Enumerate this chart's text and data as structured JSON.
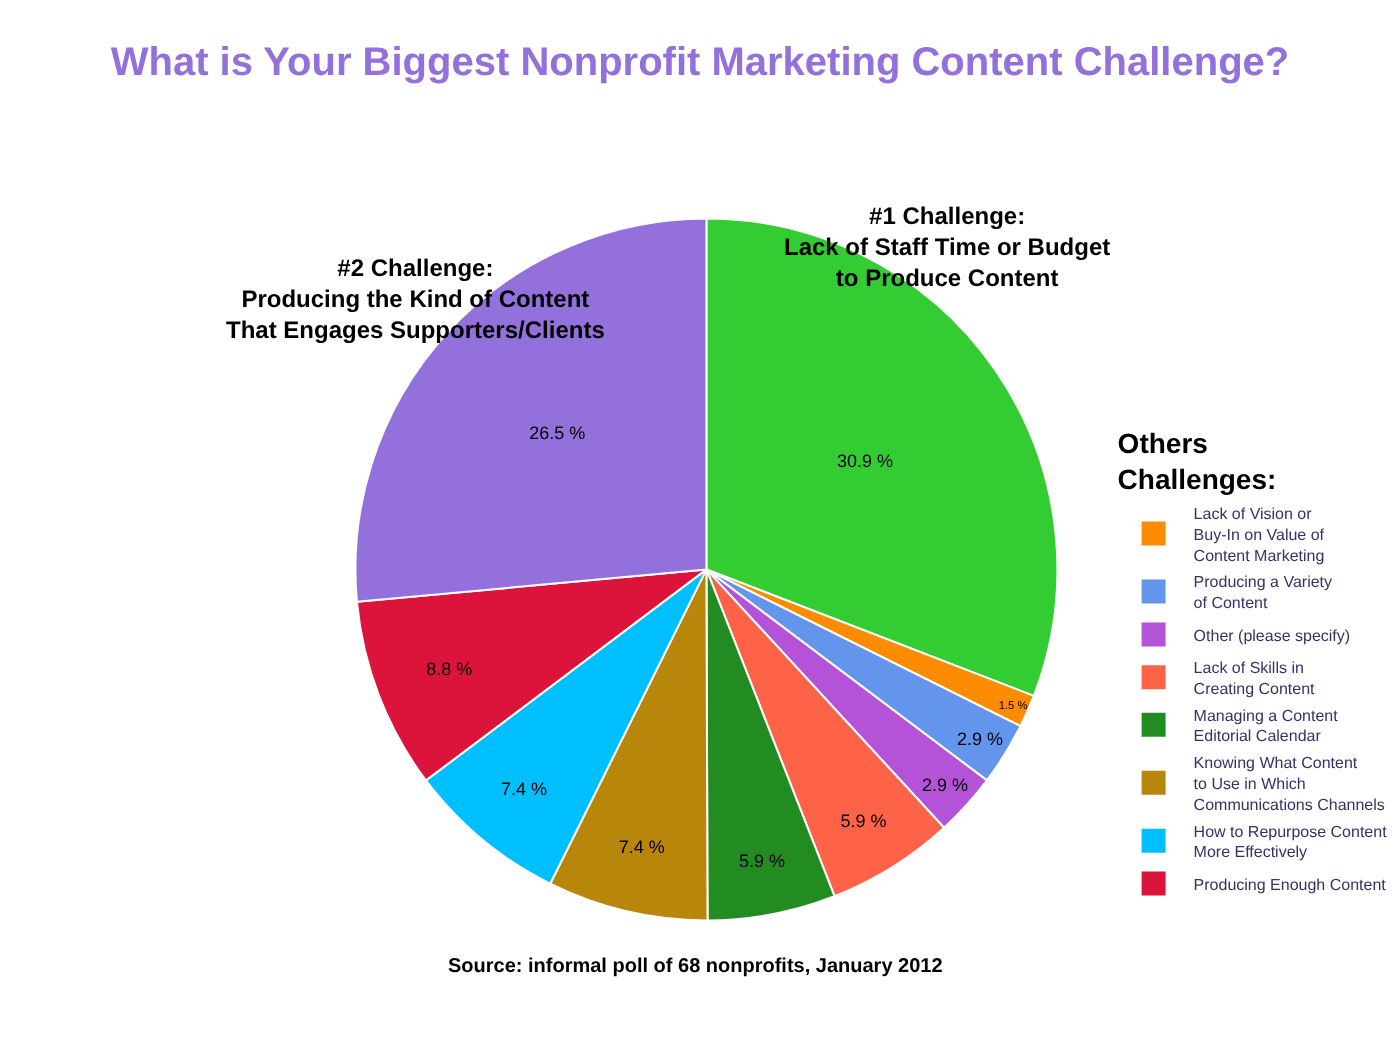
{
  "chart_data": {
    "type": "pie",
    "title": "What is Your Biggest Nonprofit Marketing Content Challenge?",
    "categories": [
      null,
      "Lack of Vision or\nBuy-In on Value of\nContent Marketing",
      "Producing a Variety\nof Content",
      "Other (please specify)",
      "Lack of Skills in\nCreating Content",
      "Managing a Content\nEditorial Calendar",
      "Knowing What Content\nto Use in Which\nCommunications Channels",
      "How to Repurpose Content\nMore Effectively",
      "Producing Enough Content",
      null
    ],
    "values": [
      30.9,
      1.5,
      2.9,
      2.9,
      5.9,
      5.9,
      7.4,
      7.4,
      8.8,
      26.5
    ],
    "colors": [
      "#33cc33",
      "#ff8c00",
      "#6495ed",
      "#b452d8",
      "#ff6347",
      "#228b22",
      "#b8860b",
      "#00bfff",
      "#dc143c",
      "#9370db"
    ],
    "value_labels": [
      "30.9 %",
      "1.5 %",
      "2.9 %",
      "2.9 %",
      "5.9 %",
      "5.9 %",
      "7.4 %",
      "7.4 %",
      "8.8 %",
      "26.5 %"
    ],
    "legend": "right",
    "legend_title": "Others\nChallenges:",
    "annotations": [
      "#1 Challenge:\nLack of Staff Time or Budget\nto Produce Content",
      "#2 Challenge:\nProducing the Kind of Content\nThat Engages Supporters/Clients",
      "Source: informal poll of 68 nonprofits, January 2012"
    ]
  }
}
